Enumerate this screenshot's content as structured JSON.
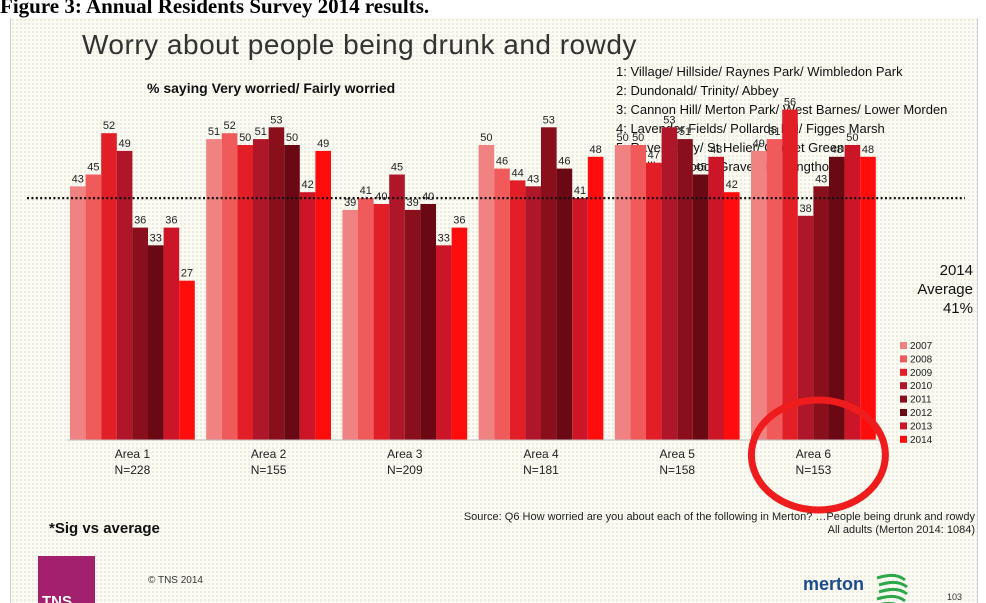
{
  "caption": "Figure 3: Annual Residents Survey 2014 results.",
  "slide": {
    "title": "Worry about people being drunk and rowdy",
    "subtitle": "% saying Very worried/ Fairly worried",
    "areas_key": [
      "1: Village/ Hillside/ Raynes Park/ Wimbledon Park",
      "2: Dundonald/ Trinity/ Abbey",
      "3: Cannon Hill/ Merton Park/ West Barnes/ Lower Morden",
      "4: Lavender Fields/ Pollards Hill/ Figges Marsh",
      "5: Ravensbury/ St Helier/ Cricket Green",
      "6: Colliers Wood/ Graveney/ Longthornton"
    ],
    "average_label": [
      "2014",
      "Average",
      "41%"
    ],
    "sig_note": "*Sig vs average",
    "source_lines": [
      "Source: Q6 How worried are you about each of the following in Merton? …People being drunk and rowdy",
      "All adults (Merton 2014: 1084)"
    ],
    "copyright": "© TNS 2014",
    "tns_logo": "TNS",
    "merton_logo": "merton",
    "page_number": "103"
  },
  "chart_data": {
    "type": "bar",
    "categories": [
      "Area 1",
      "Area 2",
      "Area 3",
      "Area 4",
      "Area 5",
      "Area 6"
    ],
    "category_n": [
      "N=228",
      "N=155",
      "N=209",
      "N=181",
      "N=158",
      "N=153"
    ],
    "series": [
      {
        "name": "2007",
        "color": "#f08282",
        "values": [
          43,
          51,
          39,
          50,
          50,
          49
        ]
      },
      {
        "name": "2008",
        "color": "#f05a5a",
        "values": [
          45,
          52,
          41,
          46,
          50,
          51
        ]
      },
      {
        "name": "2009",
        "color": "#e21f26",
        "values": [
          52,
          50,
          40,
          44,
          47,
          56
        ]
      },
      {
        "name": "2010",
        "color": "#b0162a",
        "values": [
          49,
          51,
          45,
          43,
          53,
          38
        ]
      },
      {
        "name": "2011",
        "color": "#8a0f1c",
        "values": [
          36,
          53,
          39,
          53,
          51,
          43
        ]
      },
      {
        "name": "2012",
        "color": "#6a0814",
        "values": [
          33,
          50,
          40,
          46,
          45,
          48
        ]
      },
      {
        "name": "2013",
        "color": "#cc1628",
        "values": [
          36,
          42,
          33,
          41,
          48,
          50
        ]
      },
      {
        "name": "2014",
        "color": "#ff0c0c",
        "values": [
          27,
          49,
          36,
          48,
          42,
          48
        ]
      }
    ],
    "average": 41,
    "highlight_category": "Area 6",
    "highlight_color": "#ee1c1c",
    "ylim": [
      0,
      60
    ],
    "grid": false,
    "legend_position": "right"
  }
}
